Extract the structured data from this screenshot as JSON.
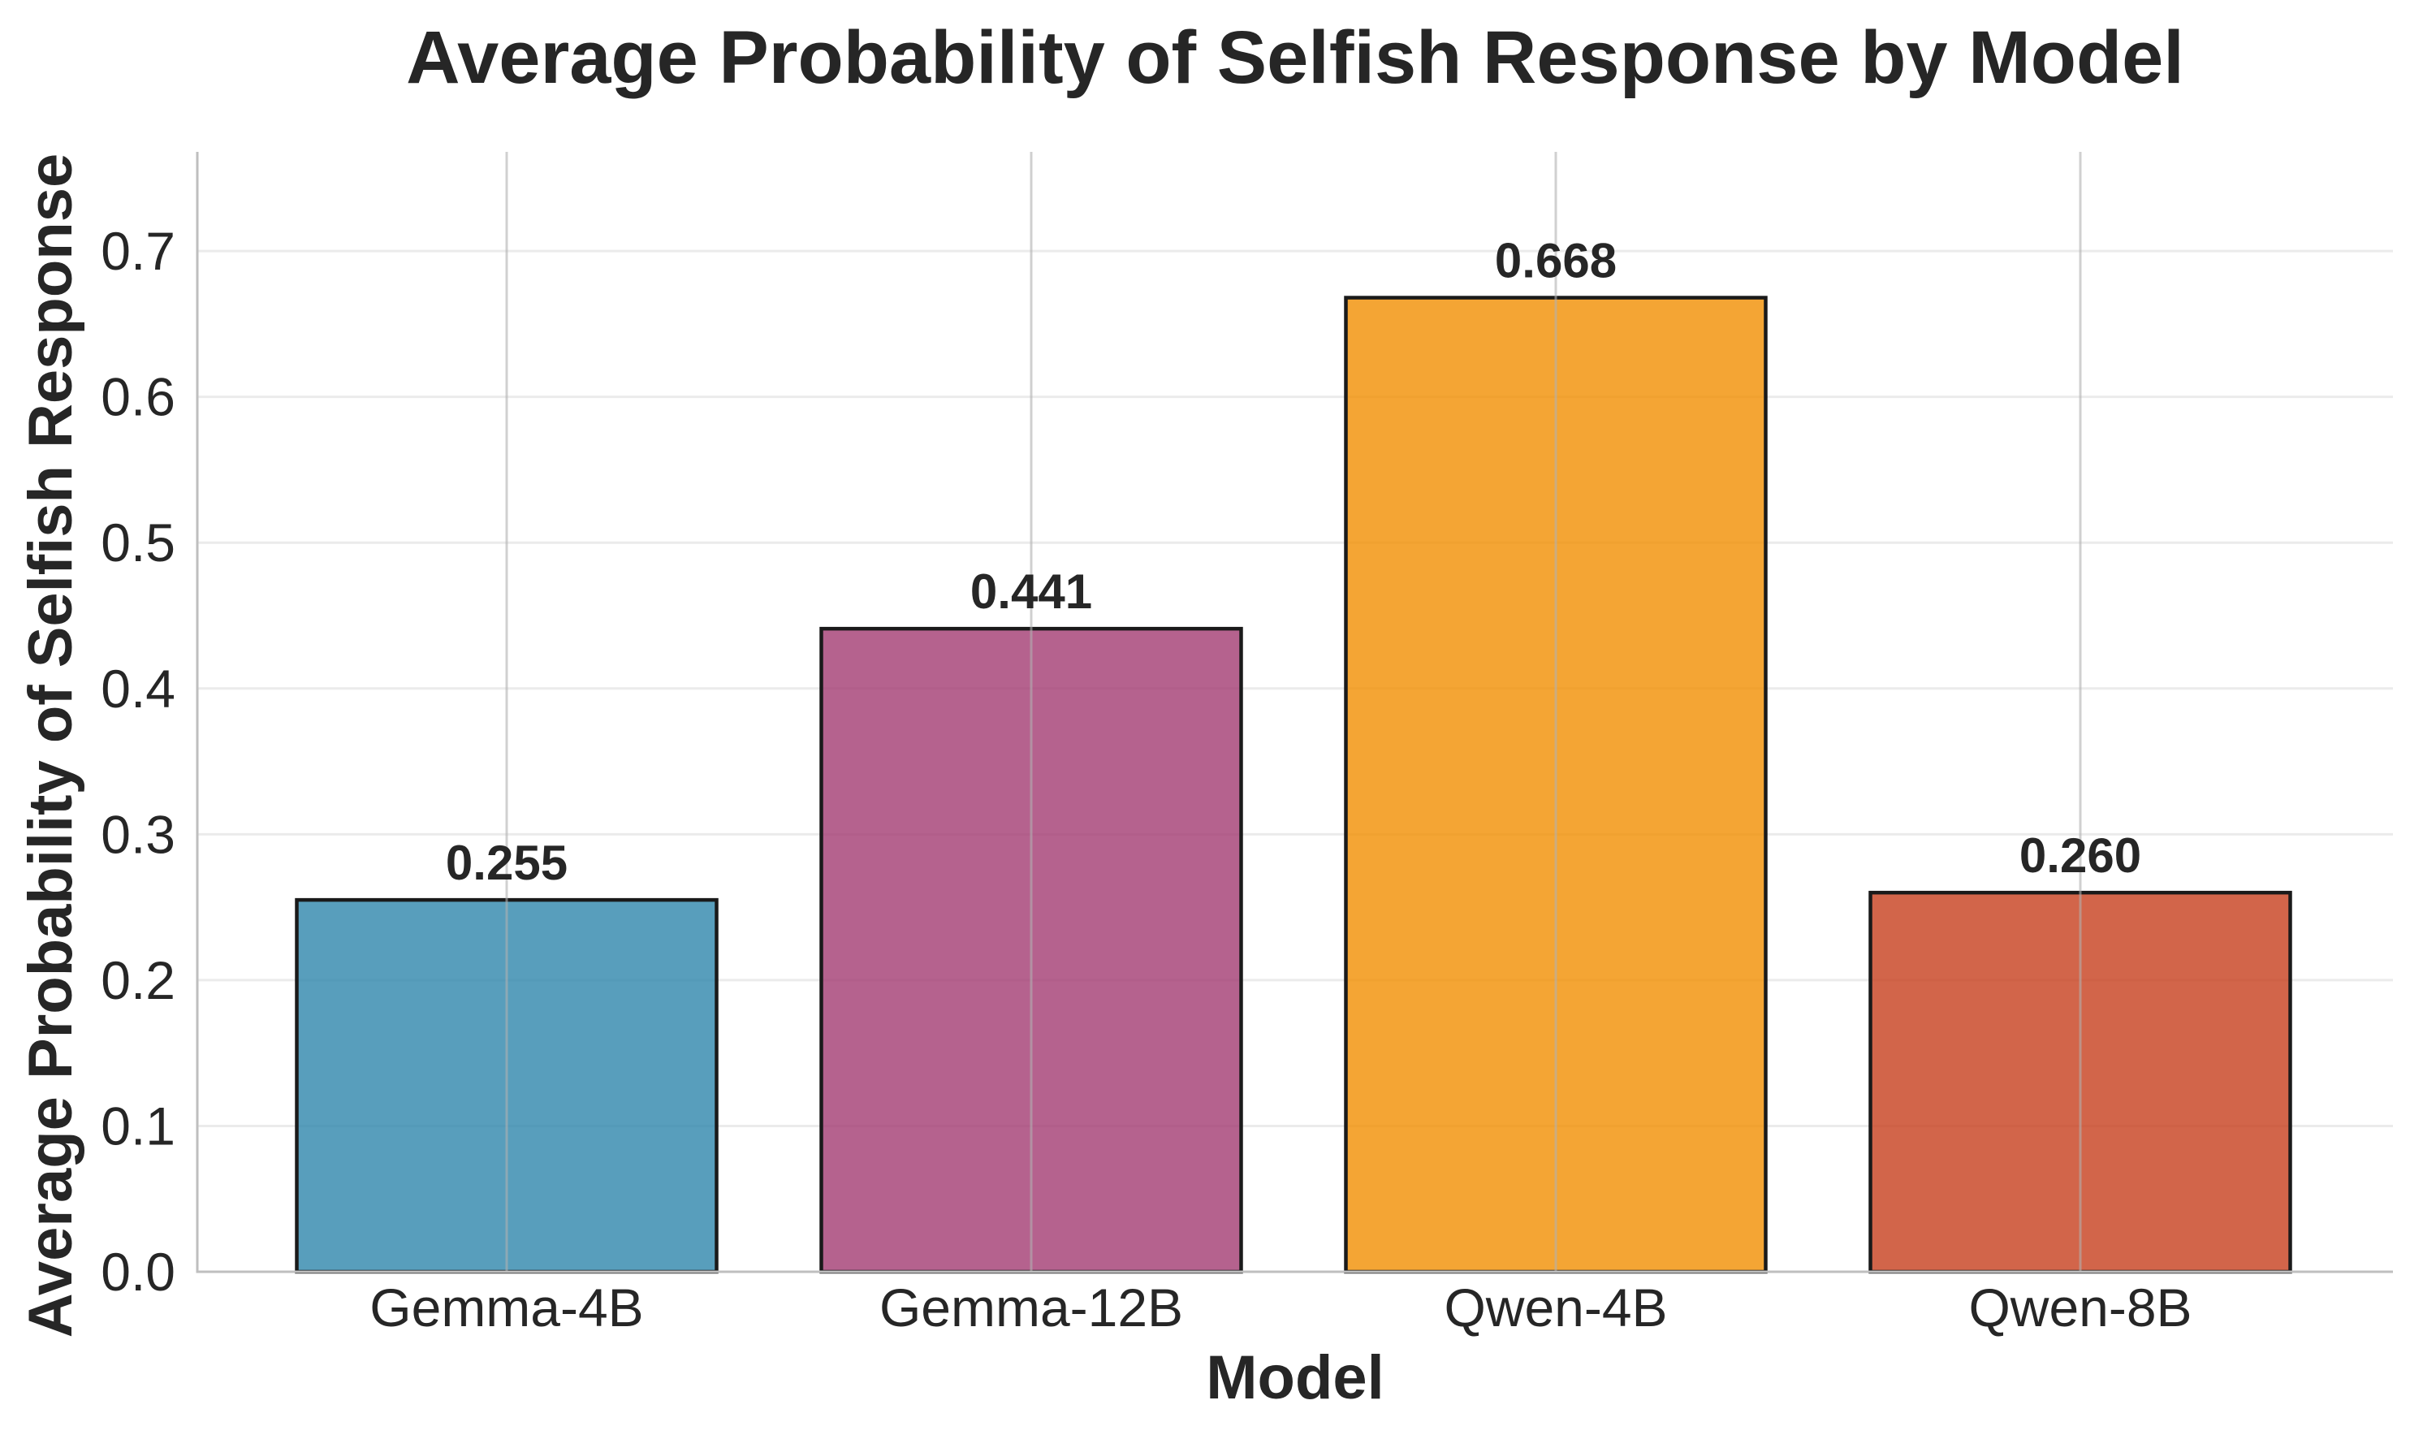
{
  "chart_data": {
    "type": "bar",
    "title": "Average Probability of Selfish Response by Model",
    "xlabel": "Model",
    "ylabel": "Average Probability of Selfish Response",
    "categories": [
      "Gemma-4B",
      "Gemma-12B",
      "Qwen-4B",
      "Qwen-8B"
    ],
    "values": [
      0.255,
      0.441,
      0.668,
      0.26
    ],
    "value_labels": [
      "0.255",
      "0.441",
      "0.668",
      "0.260"
    ],
    "colors": [
      "#2E86AB",
      "#A23B72",
      "#F18F01",
      "#C73E1D"
    ],
    "ylim": [
      0,
      0.768
    ],
    "yticks": [
      0.0,
      0.1,
      0.2,
      0.3,
      0.4,
      0.5,
      0.6,
      0.7
    ],
    "ytick_labels": [
      "0.0",
      "0.1",
      "0.2",
      "0.3",
      "0.4",
      "0.5",
      "0.6",
      "0.7"
    ],
    "grid": true,
    "legend": "none"
  }
}
